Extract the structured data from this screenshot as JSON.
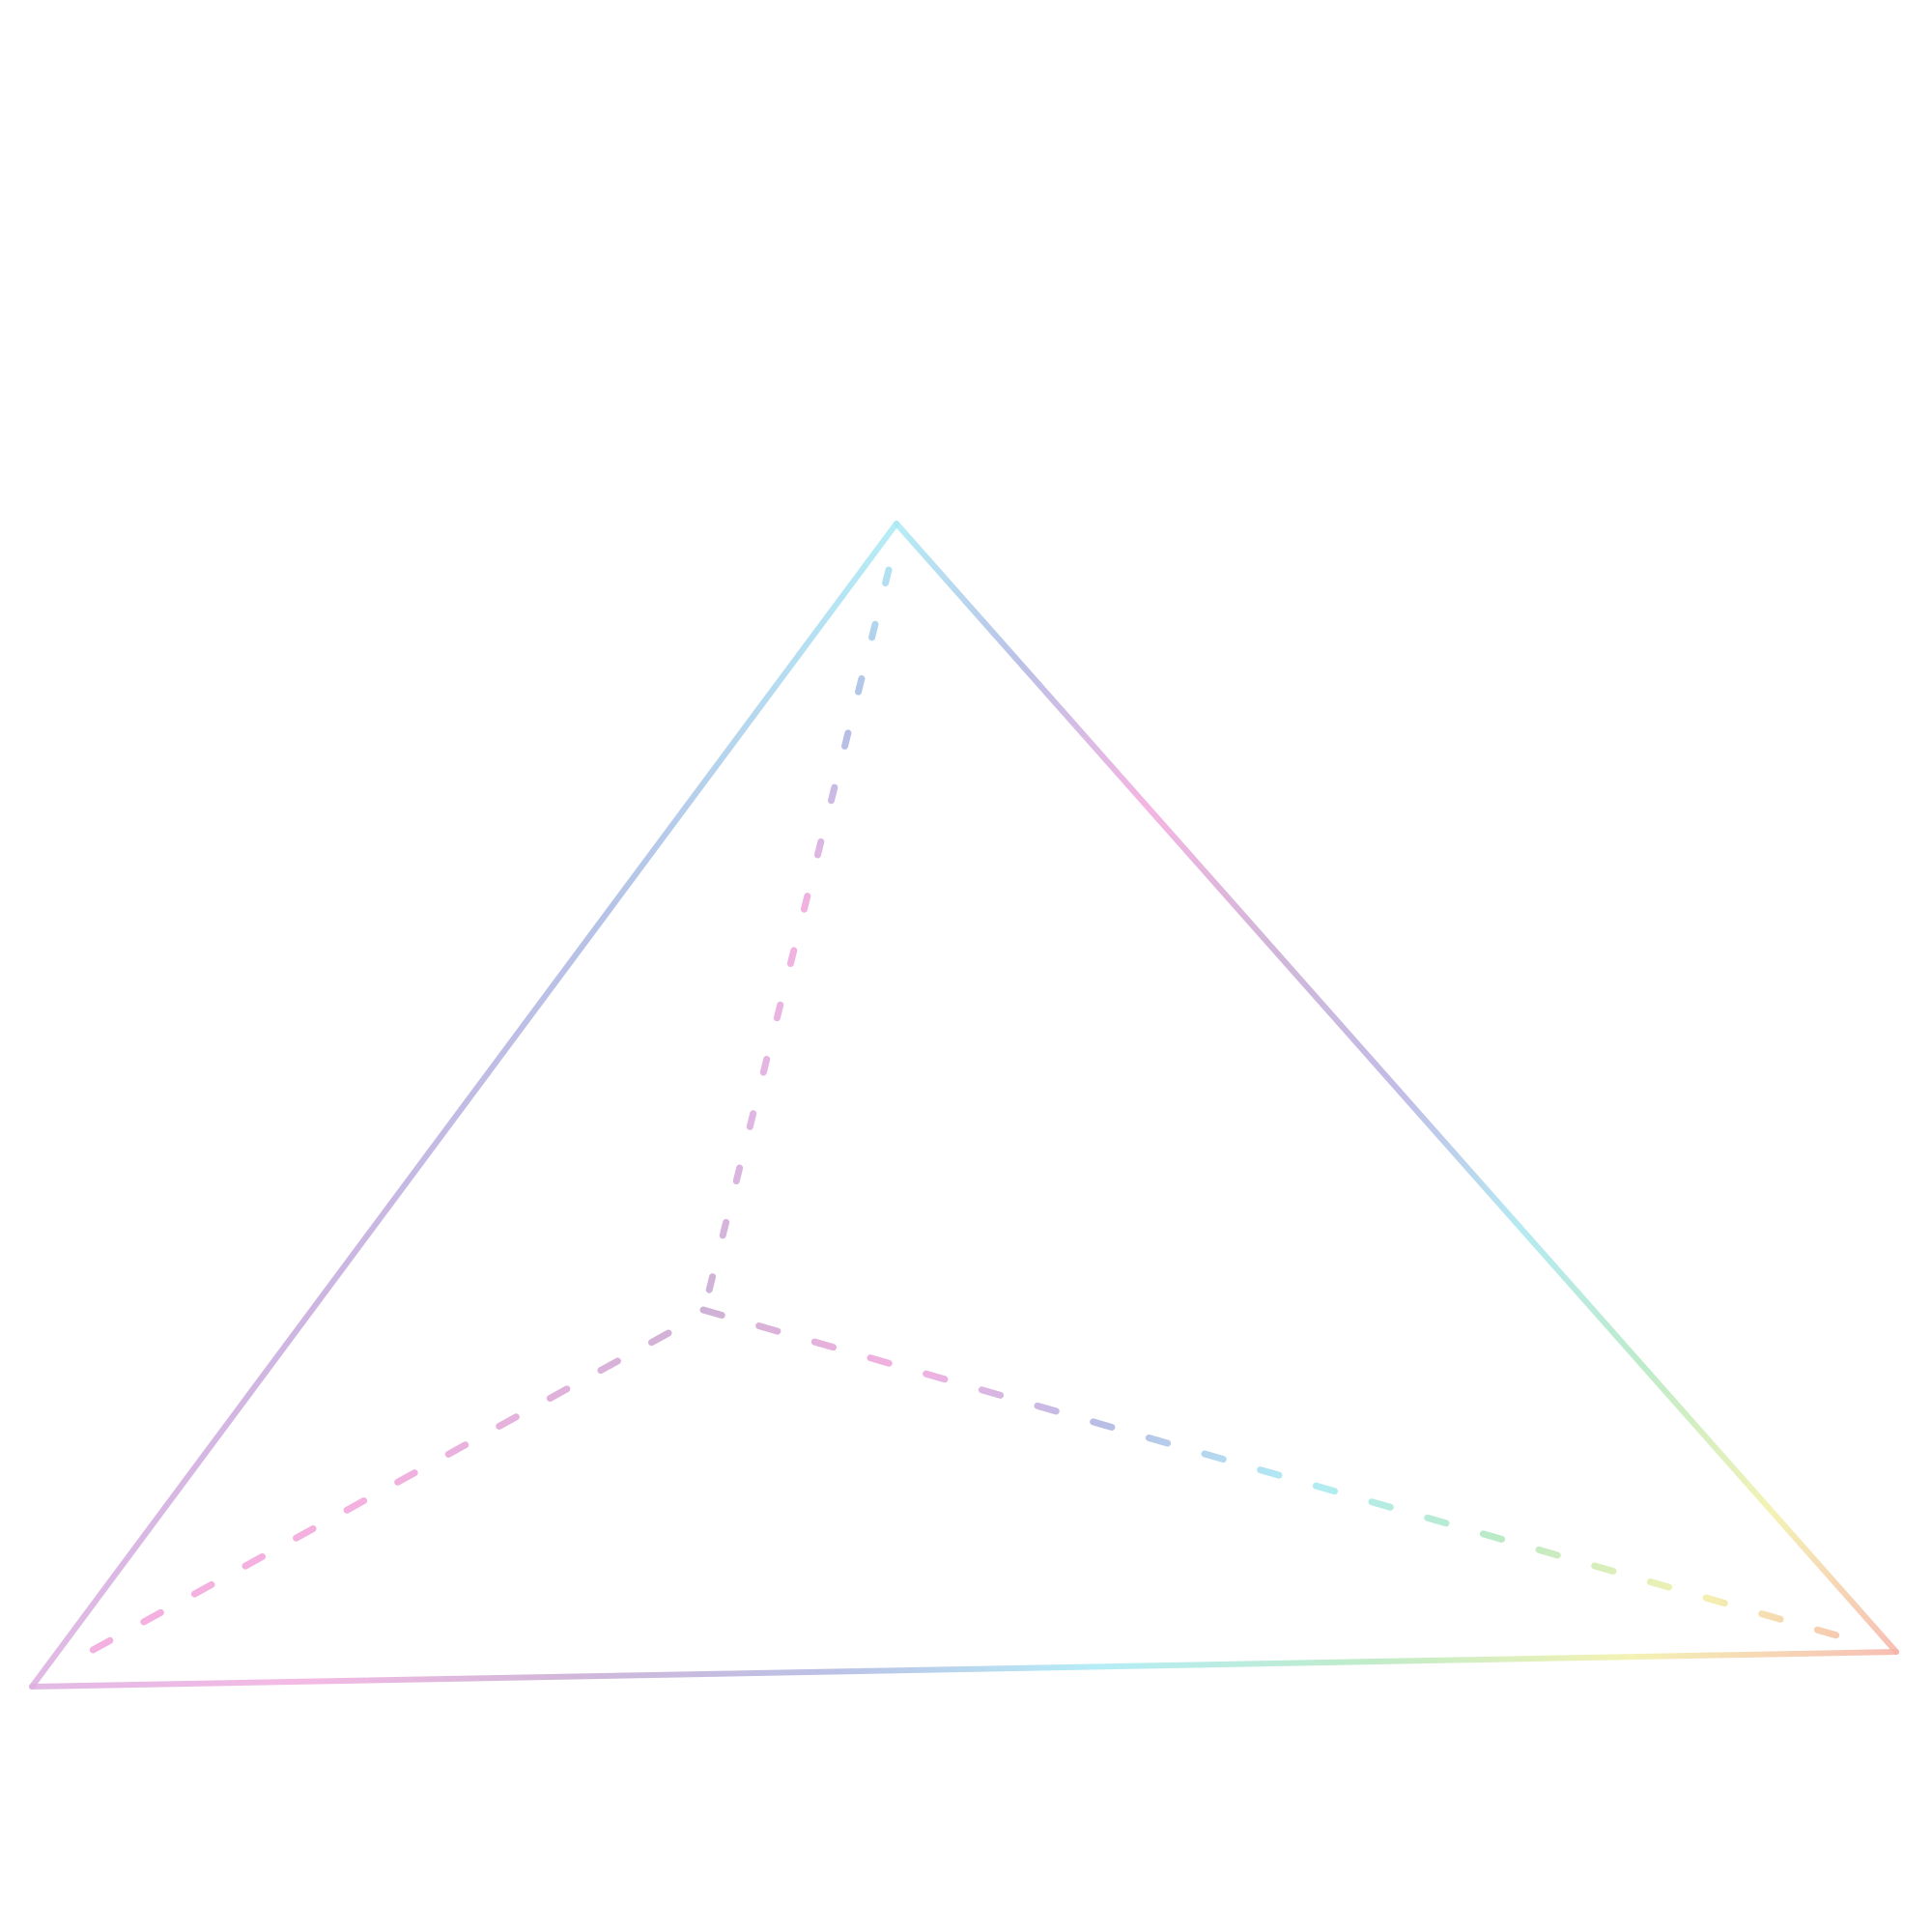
{
  "diagram": {
    "type": "tetrahedron-wireframe",
    "edges": [
      {
        "id": "apex-left",
        "style": "solid",
        "gradient": [
          "#a8eaf5",
          "#a9b8e3",
          "#c4a8dc",
          "#dcaee0"
        ]
      },
      {
        "id": "apex-right",
        "style": "solid",
        "gradient": [
          "#a8eaf5",
          "#b0b6e2",
          "#f3a8dd",
          "#c9aad2",
          "#b8b0e2",
          "#a8e6ef",
          "#b4e8c0",
          "#f2f0a8",
          "#f6b3a8"
        ]
      },
      {
        "id": "base-front",
        "style": "solid",
        "gradient": [
          "#dcaee0",
          "#f2aee0",
          "#c9aad2",
          "#b0b6e2",
          "#a8eaf5",
          "#b4e8c0",
          "#f2f0a8",
          "#f6b3a8"
        ]
      },
      {
        "id": "apex-back",
        "style": "dashed",
        "gradient": [
          "#a8eaf5",
          "#a9b8e3",
          "#f3a8dd",
          "#dcaee0",
          "#c9aad2"
        ]
      },
      {
        "id": "back-left",
        "style": "dashed",
        "gradient": [
          "#c9aad2",
          "#f3a8dd",
          "#f3a8dd"
        ]
      },
      {
        "id": "back-right",
        "style": "dashed",
        "gradient": [
          "#c9aad2",
          "#f3a8dd",
          "#b0b6e2",
          "#a8eaf5",
          "#b4e8c0",
          "#f2f0a8",
          "#f6b3a8"
        ]
      }
    ]
  }
}
